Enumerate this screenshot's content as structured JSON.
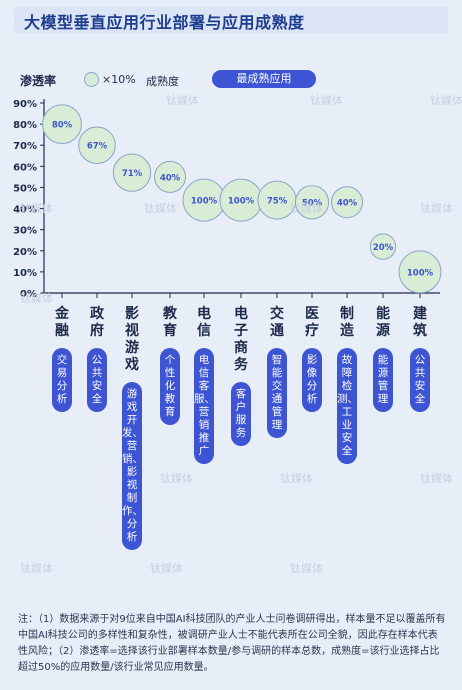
{
  "title": "大模型垂直应用行业部署与应用成熟度",
  "legend": {
    "ylabel": "渗透率",
    "size_note": "×10%",
    "maturity_label": "成熟度",
    "most_mature_label": "最成熟应用"
  },
  "colors": {
    "accent": "#3d55d2",
    "bubble_fill": "#d9ecd6",
    "bubble_stroke": "#8aa4c8",
    "axis": "#1d2a4a"
  },
  "watermark": "钛媒体",
  "chart_data": {
    "type": "scatter",
    "title": "大模型垂直应用行业部署与应用成熟度",
    "ylabel": "渗透率",
    "ylim": [
      0,
      90
    ],
    "yticks": [
      "0%",
      "10%",
      "20%",
      "30%",
      "40%",
      "50%",
      "60%",
      "70%",
      "80%",
      "90%"
    ],
    "categories": [
      "金融",
      "政府",
      "影视游戏",
      "教育",
      "电信",
      "电子商务",
      "交通",
      "医疗",
      "制造",
      "能源",
      "建筑"
    ],
    "penetration": [
      80,
      70,
      57,
      55,
      44,
      44,
      44,
      43,
      43,
      22,
      10
    ],
    "maturity": [
      80,
      67,
      71,
      40,
      100,
      100,
      75,
      50,
      40,
      20,
      100
    ],
    "maturity_labels": [
      "80%",
      "67%",
      "71%",
      "40%",
      "100%",
      "100%",
      "75%",
      "50%",
      "40%",
      "20%",
      "100%"
    ],
    "most_mature_apps": [
      "交易分析",
      "公共安全",
      "游戏开发、营销、影视制作、分析",
      "个性化教育",
      "电信客服、营销推广",
      "客户服务",
      "智能交通管理",
      "影像分析",
      "故障检测、工业安全",
      "能源管理",
      "公共安全"
    ]
  },
  "note": "注：（1）数据来源于对9位来自中国AI科技团队的产业人士问卷调研得出，样本量不足以覆盖所有中国AI科技公司的多样性和复杂性，被调研产业人士不能代表所在公司全貌，因此存在样本代表性风险；（2）渗透率=选择该行业部署样本数量/参与调研的样本总数，成熟度=该行业选择占比超过50%的应用数量/该行业常见应用数量。"
}
